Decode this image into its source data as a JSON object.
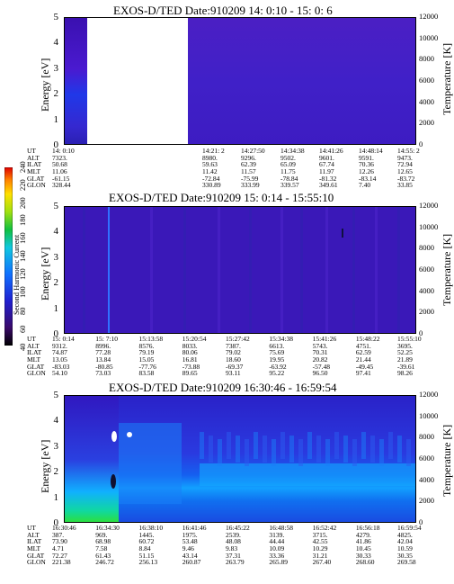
{
  "panels": [
    {
      "title": "EXOS-D/TED   Date:910209  14: 0:10 - 15: 0: 6",
      "ylabel": "Energy [eV]",
      "rlabel": "Temperature [K]",
      "yticks": [
        "0",
        "1",
        "2",
        "3",
        "4",
        "5"
      ],
      "rticks": [
        "0",
        "2000",
        "4000",
        "6000",
        "8000",
        "10000",
        "12000"
      ],
      "ephem_labels": [
        "UT",
        "ALT",
        "ILAT",
        "MLT",
        "GLAT",
        "GLON"
      ],
      "ephem_cols": [
        [
          "14: 0:10",
          "7323.",
          "50.68",
          "11.06",
          "-61.15",
          "328.44"
        ],
        [
          "14:21: 2",
          "8980.",
          "59.63",
          "11.42",
          "-72.84",
          "330.89"
        ],
        [
          "14:27:50",
          "9296.",
          "62.39",
          "11.57",
          "-75.99",
          "333.99"
        ],
        [
          "14:34:38",
          "9502.",
          "65.09",
          "11.75",
          "-78.84",
          "339.57"
        ],
        [
          "14:41:26",
          "9601.",
          "67.74",
          "11.97",
          "-81.32",
          "349.61"
        ],
        [
          "14:48:14",
          "9591.",
          "70.36",
          "12.26",
          "-83.14",
          "7.40"
        ],
        [
          "14:55: 2",
          "9473.",
          "72.94",
          "12.65",
          "-83.72",
          "33.85"
        ]
      ]
    },
    {
      "title": "EXOS-D/TED   Date:910209  15: 0:14 - 15:55:10",
      "ylabel": "Energy [eV]",
      "rlabel": "Temperature [K]",
      "yticks": [
        "0",
        "1",
        "2",
        "3",
        "4",
        "5"
      ],
      "rticks": [
        "0",
        "2000",
        "4000",
        "6000",
        "8000",
        "10000",
        "12000"
      ],
      "ephem_labels": [
        "UT",
        "ALT",
        "ILAT",
        "MLT",
        "GLAT",
        "GLON"
      ],
      "ephem_cols": [
        [
          "15: 0:14",
          "9312.",
          "74.87",
          "13.05",
          "-83.03",
          "54.10"
        ],
        [
          "15: 7:10",
          "8996.",
          "77.28",
          "13.84",
          "-80.85",
          "73.03"
        ],
        [
          "15:13:58",
          "8576.",
          "79.19",
          "15.05",
          "-77.76",
          "83.58"
        ],
        [
          "15:20:54",
          "8033.",
          "80.06",
          "16.81",
          "-73.88",
          "89.65"
        ],
        [
          "15:27:42",
          "7387.",
          "79.02",
          "18.60",
          "-69.37",
          "93.11"
        ],
        [
          "15:34:38",
          "6613.",
          "75.69",
          "19.95",
          "-63.92",
          "95.22"
        ],
        [
          "15:41:26",
          "5743.",
          "70.31",
          "20.82",
          "-57.48",
          "96.50"
        ],
        [
          "15:48:22",
          "4751.",
          "62.59",
          "21.44",
          "-49.45",
          "97.41"
        ],
        [
          "15:55:10",
          "3695.",
          "52.25",
          "21.89",
          "-39.61",
          "98.26"
        ]
      ]
    },
    {
      "title": "EXOS-D/TED   Date:910209  16:30:46 - 16:59:54",
      "ylabel": "Energy [eV]",
      "rlabel": "Temperature [K]",
      "yticks": [
        "0",
        "1",
        "2",
        "3",
        "4",
        "5"
      ],
      "rticks": [
        "0",
        "2000",
        "4000",
        "6000",
        "8000",
        "10000",
        "12000"
      ],
      "ephem_labels": [
        "UT",
        "ALT",
        "ILAT",
        "MLT",
        "GLAT",
        "GLON"
      ],
      "ephem_cols": [
        [
          "16:30:46",
          "387.",
          "73.90",
          "4.71",
          "72.27",
          "221.38"
        ],
        [
          "16:34:30",
          "969.",
          "68.98",
          "7.58",
          "61.43",
          "246.72"
        ],
        [
          "16:38:10",
          "1445.",
          "60.72",
          "8.84",
          "51.15",
          "256.13"
        ],
        [
          "16:41:46",
          "1975.",
          "53.48",
          "9.46",
          "43.14",
          "260.87"
        ],
        [
          "16:45:22",
          "2539.",
          "48.08",
          "9.83",
          "37.31",
          "263.79"
        ],
        [
          "16:48:58",
          "3139.",
          "44.44",
          "10.09",
          "33.36",
          "265.89"
        ],
        [
          "16:52:42",
          "3715.",
          "42.55",
          "10.29",
          "31.21",
          "267.40"
        ],
        [
          "16:56:18",
          "4279.",
          "41.86",
          "10.45",
          "30.33",
          "268.60"
        ],
        [
          "16:59:54",
          "4825.",
          "42.04",
          "10.59",
          "30.35",
          "269.58"
        ]
      ]
    }
  ],
  "colorbar": {
    "label": "Second Harmonic Current",
    "ticks": [
      "40",
      "60",
      "80",
      "100",
      "120",
      "140",
      "160",
      "180",
      "200",
      "220",
      "240"
    ]
  },
  "chart_data": [
    {
      "type": "heatmap",
      "title": "EXOS-D/TED   Date:910209  14: 0:10 - 15: 0: 6",
      "xlabel": "UT",
      "ylabel": "Energy [eV]",
      "y2label": "Temperature [K]",
      "x": [
        "14: 0:10",
        "14:21: 2",
        "14:27:50",
        "14:34:38",
        "14:41:26",
        "14:48:14",
        "14:55: 2"
      ],
      "ylim": [
        0,
        5
      ],
      "y2lim": [
        0,
        12000
      ],
      "note_values": "Second harmonic current mostly ~80-100 (blue); data gap ~14:02-14:20 (white)"
    },
    {
      "type": "heatmap",
      "title": "EXOS-D/TED   Date:910209  15: 0:14 - 15:55:10",
      "xlabel": "UT",
      "ylabel": "Energy [eV]",
      "y2label": "Temperature [K]",
      "x": [
        "15: 0:14",
        "15: 7:10",
        "15:13:58",
        "15:20:54",
        "15:27:42",
        "15:34:38",
        "15:41:26",
        "15:48:22",
        "15:55:10"
      ],
      "ylim": [
        0,
        5
      ],
      "y2lim": [
        0,
        12000
      ]
    },
    {
      "type": "heatmap",
      "title": "EXOS-D/TED   Date:910209  16:30:46 - 16:59:54",
      "xlabel": "UT",
      "ylabel": "Energy [eV]",
      "y2label": "Temperature [K]",
      "x": [
        "16:30:46",
        "16:34:30",
        "16:38:10",
        "16:41:46",
        "16:45:22",
        "16:48:58",
        "16:52:42",
        "16:56:18",
        "16:59:54"
      ],
      "ylim": [
        0,
        5
      ],
      "y2lim": [
        0,
        12000
      ]
    }
  ]
}
